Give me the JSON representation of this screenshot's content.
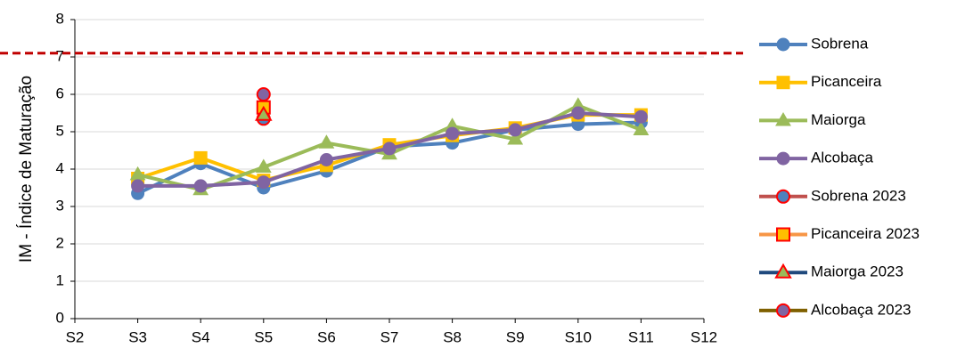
{
  "chart_data": {
    "type": "line",
    "y_label": "IM - Índice de Maturação",
    "categories": [
      "S2",
      "S3",
      "S4",
      "S5",
      "S6",
      "S7",
      "S8",
      "S9",
      "S10",
      "S11",
      "S12"
    ],
    "ylim": [
      0,
      8
    ],
    "yticks": [
      0,
      1,
      2,
      3,
      4,
      5,
      6,
      7,
      8
    ],
    "grid": true,
    "reference_line": {
      "value": 7.1,
      "color": "#c00000"
    },
    "legend": "right",
    "series": [
      {
        "name": "Sobrena",
        "color": "#4f81bd",
        "line_color": "#4f81bd",
        "marker": "circle",
        "values": [
          null,
          3.35,
          4.15,
          3.5,
          3.95,
          4.6,
          4.7,
          5.05,
          5.2,
          5.25,
          null
        ]
      },
      {
        "name": "Picanceira",
        "color": "#ffc000",
        "line_color": "#ffc000",
        "marker": "square",
        "values": [
          null,
          3.75,
          4.3,
          3.7,
          4.1,
          4.65,
          4.9,
          5.1,
          5.45,
          5.45,
          null
        ]
      },
      {
        "name": "Maiorga",
        "color": "#9bbb59",
        "line_color": "#9bbb59",
        "marker": "triangle",
        "values": [
          null,
          3.85,
          3.45,
          4.05,
          4.7,
          4.4,
          5.15,
          4.8,
          5.7,
          5.05,
          null
        ]
      },
      {
        "name": "Alcobaça",
        "color": "#8064a2",
        "line_color": "#8064a2",
        "marker": "circle",
        "values": [
          null,
          3.55,
          3.55,
          3.65,
          4.25,
          4.55,
          4.95,
          5.05,
          5.5,
          5.4,
          null
        ]
      },
      {
        "name": "Sobrena 2023",
        "color": "#4f81bd",
        "line_color": "#c0504d",
        "edge": "#ff0000",
        "marker": "circle",
        "values": [
          null,
          null,
          null,
          5.35,
          null,
          null,
          null,
          null,
          null,
          null,
          null
        ]
      },
      {
        "name": "Picanceira 2023",
        "color": "#ffc000",
        "line_color": "#f79646",
        "edge": "#ff0000",
        "marker": "square",
        "values": [
          null,
          null,
          null,
          5.65,
          null,
          null,
          null,
          null,
          null,
          null,
          null
        ]
      },
      {
        "name": "Maiorga 2023",
        "color": "#9bbb59",
        "line_color": "#1f497d",
        "edge": "#ff0000",
        "marker": "triangle",
        "values": [
          null,
          null,
          null,
          5.45,
          null,
          null,
          null,
          null,
          null,
          null,
          null
        ]
      },
      {
        "name": "Alcobaça 2023",
        "color": "#8064a2",
        "line_color": "#7f6000",
        "edge": "#ff0000",
        "marker": "circle",
        "values": [
          null,
          null,
          null,
          6.0,
          null,
          null,
          null,
          null,
          null,
          null,
          null
        ]
      }
    ]
  }
}
